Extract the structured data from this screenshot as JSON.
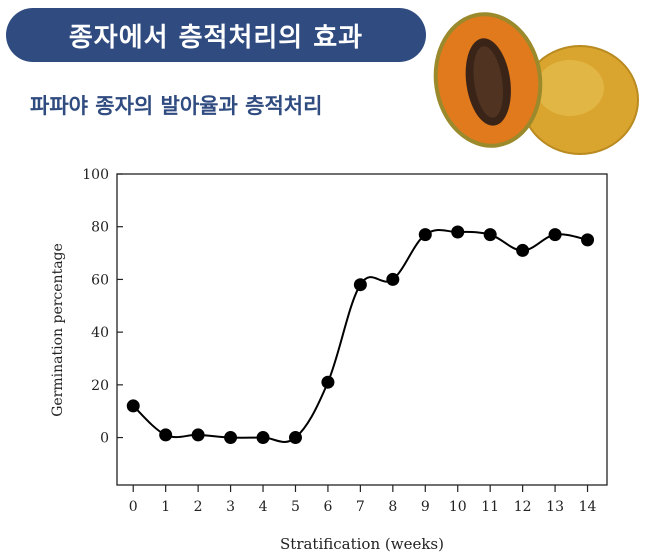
{
  "header": {
    "title": "종자에서 층적처리의 효과",
    "subtitle": "파파야 종자의 발아율과 층적처리"
  },
  "colors": {
    "accent": "#2f4b80",
    "marker": "#000000",
    "axis": "#222222"
  },
  "chart_data": {
    "type": "line",
    "title": "",
    "xlabel": "Stratification (weeks)",
    "ylabel": "Germination percentage",
    "x": [
      0,
      1,
      2,
      3,
      4,
      5,
      6,
      7,
      8,
      9,
      10,
      11,
      12,
      13,
      14
    ],
    "y": [
      12,
      1,
      1,
      0,
      0,
      0,
      21,
      58,
      60,
      77,
      78,
      77,
      71,
      77,
      75
    ],
    "x_ticks": [
      "0",
      "1",
      "2",
      "3",
      "4",
      "5",
      "6",
      "7",
      "8",
      "9",
      "10",
      "11",
      "12",
      "13",
      "14"
    ],
    "y_ticks": [
      "100",
      "80",
      "60",
      "40",
      "20",
      "0"
    ],
    "xlim": [
      -0.5,
      14.6
    ],
    "ylim": [
      -18,
      100
    ],
    "grid": false,
    "markers": true
  }
}
